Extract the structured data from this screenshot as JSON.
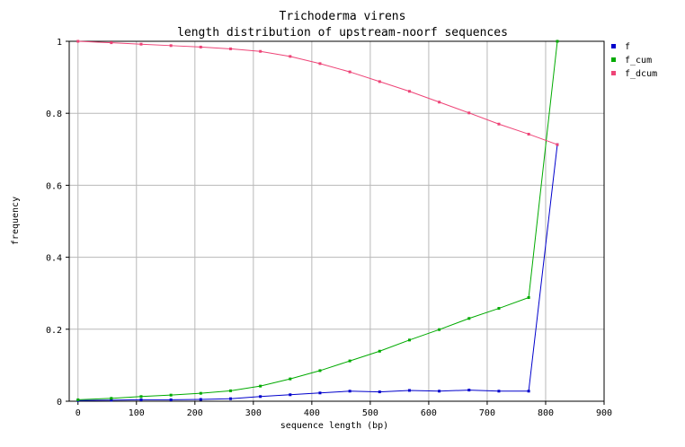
{
  "chart_data": {
    "type": "line",
    "title": "Trichoderma virens",
    "subtitle": "length distribution of upstream-noorf sequences",
    "xlabel": "sequence length (bp)",
    "ylabel": "frequency",
    "xlim": [
      -15,
      900
    ],
    "ylim": [
      0,
      1
    ],
    "xticks": [
      "0",
      "100",
      "200",
      "300",
      "400",
      "500",
      "600",
      "700",
      "800",
      "900"
    ],
    "yticks": [
      "0",
      "0.2",
      "0.4",
      "0.6",
      "0.8",
      "1"
    ],
    "grid": true,
    "legend_position": "top-right",
    "x": [
      0,
      57,
      108,
      159,
      210,
      261,
      312,
      363,
      414,
      465,
      516,
      567,
      618,
      669,
      720,
      771,
      820
    ],
    "series": [
      {
        "name": "f",
        "color": "#0000cc",
        "values": [
          0.002,
          0.003,
          0.004,
          0.004,
          0.005,
          0.007,
          0.013,
          0.018,
          0.023,
          0.028,
          0.026,
          0.03,
          0.028,
          0.031,
          0.028,
          0.028,
          0.713
        ]
      },
      {
        "name": "f_cum",
        "color": "#00aa00",
        "values": [
          0.004,
          0.008,
          0.013,
          0.017,
          0.022,
          0.029,
          0.042,
          0.062,
          0.085,
          0.112,
          0.139,
          0.17,
          0.199,
          0.23,
          0.258,
          0.288,
          1.0
        ]
      },
      {
        "name": "f_dcum",
        "color": "#ee4477",
        "values": [
          1.0,
          0.996,
          0.992,
          0.988,
          0.984,
          0.979,
          0.972,
          0.958,
          0.938,
          0.915,
          0.888,
          0.861,
          0.831,
          0.801,
          0.77,
          0.742,
          0.713
        ]
      }
    ]
  }
}
